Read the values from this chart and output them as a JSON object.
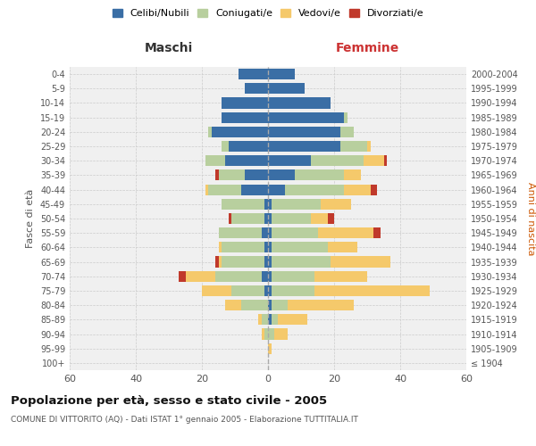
{
  "age_groups": [
    "100+",
    "95-99",
    "90-94",
    "85-89",
    "80-84",
    "75-79",
    "70-74",
    "65-69",
    "60-64",
    "55-59",
    "50-54",
    "45-49",
    "40-44",
    "35-39",
    "30-34",
    "25-29",
    "20-24",
    "15-19",
    "10-14",
    "5-9",
    "0-4"
  ],
  "birth_years": [
    "≤ 1904",
    "1905-1909",
    "1910-1914",
    "1915-1919",
    "1920-1924",
    "1925-1929",
    "1930-1934",
    "1935-1939",
    "1940-1944",
    "1945-1949",
    "1950-1954",
    "1955-1959",
    "1960-1964",
    "1965-1969",
    "1970-1974",
    "1975-1979",
    "1980-1984",
    "1985-1989",
    "1990-1994",
    "1995-1999",
    "2000-2004"
  ],
  "males": {
    "celibi": [
      0,
      0,
      0,
      0,
      0,
      1,
      2,
      1,
      1,
      2,
      1,
      1,
      8,
      7,
      13,
      12,
      17,
      14,
      14,
      7,
      9
    ],
    "coniugati": [
      0,
      0,
      1,
      2,
      8,
      10,
      14,
      13,
      13,
      13,
      10,
      13,
      10,
      8,
      6,
      2,
      1,
      0,
      0,
      0,
      0
    ],
    "vedovi": [
      0,
      0,
      1,
      1,
      5,
      9,
      9,
      1,
      1,
      0,
      0,
      0,
      1,
      0,
      0,
      0,
      0,
      0,
      0,
      0,
      0
    ],
    "divorziati": [
      0,
      0,
      0,
      0,
      0,
      0,
      2,
      1,
      0,
      0,
      1,
      0,
      0,
      1,
      0,
      0,
      0,
      0,
      0,
      0,
      0
    ]
  },
  "females": {
    "nubili": [
      0,
      0,
      0,
      1,
      1,
      1,
      1,
      1,
      1,
      1,
      1,
      1,
      5,
      8,
      13,
      22,
      22,
      23,
      19,
      11,
      8
    ],
    "coniugate": [
      0,
      0,
      2,
      2,
      5,
      13,
      13,
      18,
      17,
      14,
      12,
      15,
      18,
      15,
      16,
      8,
      4,
      1,
      0,
      0,
      0
    ],
    "vedove": [
      0,
      1,
      4,
      9,
      20,
      35,
      16,
      18,
      9,
      17,
      5,
      9,
      8,
      5,
      6,
      1,
      0,
      0,
      0,
      0,
      0
    ],
    "divorziate": [
      0,
      0,
      0,
      0,
      0,
      0,
      0,
      0,
      0,
      2,
      2,
      0,
      2,
      0,
      1,
      0,
      0,
      0,
      0,
      0,
      0
    ]
  },
  "colors": {
    "celibi": "#3a6ea5",
    "coniugati": "#b8cf9e",
    "vedovi": "#f5c96b",
    "divorziati": "#c0392b"
  },
  "title": "Popolazione per età, sesso e stato civile - 2005",
  "subtitle": "COMUNE DI VITTORITO (AQ) - Dati ISTAT 1° gennaio 2005 - Elaborazione TUTTITALIA.IT",
  "xlabel_left": "Maschi",
  "xlabel_right": "Femmine",
  "ylabel_left": "Fasce di età",
  "ylabel_right": "Anni di nascita",
  "xlim": 60,
  "bg_color": "#f0f0f0",
  "legend_labels": [
    "Celibi/Nubili",
    "Coniugati/e",
    "Vedovi/e",
    "Divorziati/e"
  ]
}
